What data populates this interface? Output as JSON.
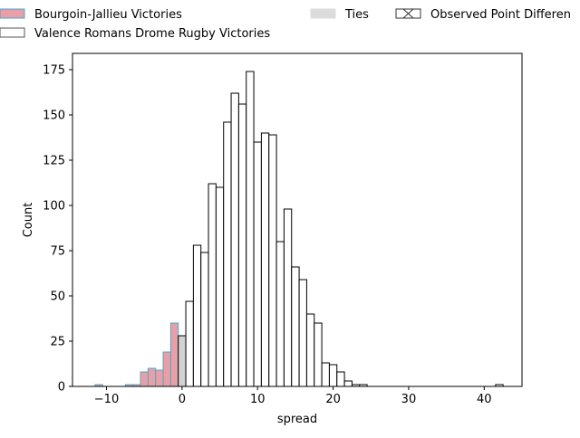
{
  "chart_data": {
    "type": "bar",
    "title": "",
    "xlabel": "spread",
    "ylabel": "Count",
    "xlim": [
      -14.5,
      45
    ],
    "ylim": [
      0,
      184
    ],
    "xticks": [
      -10,
      0,
      10,
      20,
      30,
      40
    ],
    "yticks": [
      0,
      25,
      50,
      75,
      100,
      125,
      150,
      175
    ],
    "grid": false,
    "legend_position": "top",
    "legend": [
      {
        "label": "Bourgoin-Jallieu Victories",
        "fill": "#e8a0a6",
        "edge": "#4aa7c9"
      },
      {
        "label": "Valence Romans Drome Rugby Victories",
        "fill": "#ffffff",
        "edge": "#555555"
      },
      {
        "label": "Ties",
        "fill": "#dcdcdc",
        "edge": "#dcdcdc"
      },
      {
        "label": "Observed Point Differen",
        "fill": "#ffffff",
        "edge": "#333333",
        "hatch": "x"
      }
    ],
    "bin_width": 1,
    "series": [
      {
        "name": "Bourgoin-Jallieu Victories",
        "fill": "#e8a0a6",
        "edge": "#4aa7c9",
        "bins": [
          {
            "x": -11,
            "count": 1
          },
          {
            "x": -7,
            "count": 1
          },
          {
            "x": -6,
            "count": 1
          },
          {
            "x": -5,
            "count": 8
          },
          {
            "x": -4,
            "count": 10
          },
          {
            "x": -3,
            "count": 9
          },
          {
            "x": -2,
            "count": 19
          },
          {
            "x": -1,
            "count": 35
          }
        ]
      },
      {
        "name": "Ties",
        "fill": "#d3d3d3",
        "edge": "#000000",
        "bins": [
          {
            "x": 0,
            "count": 28
          }
        ]
      },
      {
        "name": "Valence Romans Drome Rugby Victories",
        "fill": "#ffffff",
        "edge": "#000000",
        "bins": [
          {
            "x": 1,
            "count": 47
          },
          {
            "x": 2,
            "count": 78
          },
          {
            "x": 3,
            "count": 74
          },
          {
            "x": 4,
            "count": 112
          },
          {
            "x": 5,
            "count": 110
          },
          {
            "x": 6,
            "count": 146
          },
          {
            "x": 7,
            "count": 162
          },
          {
            "x": 8,
            "count": 156
          },
          {
            "x": 9,
            "count": 174
          },
          {
            "x": 10,
            "count": 135
          },
          {
            "x": 11,
            "count": 140
          },
          {
            "x": 12,
            "count": 139
          },
          {
            "x": 13,
            "count": 80
          },
          {
            "x": 14,
            "count": 98
          },
          {
            "x": 15,
            "count": 66
          },
          {
            "x": 16,
            "count": 59
          },
          {
            "x": 17,
            "count": 40
          },
          {
            "x": 18,
            "count": 35
          },
          {
            "x": 19,
            "count": 13
          },
          {
            "x": 20,
            "count": 12
          },
          {
            "x": 21,
            "count": 8
          },
          {
            "x": 22,
            "count": 3
          },
          {
            "x": 23,
            "count": 1
          },
          {
            "x": 24,
            "count": 1
          },
          {
            "x": 42,
            "count": 1
          }
        ]
      }
    ]
  }
}
